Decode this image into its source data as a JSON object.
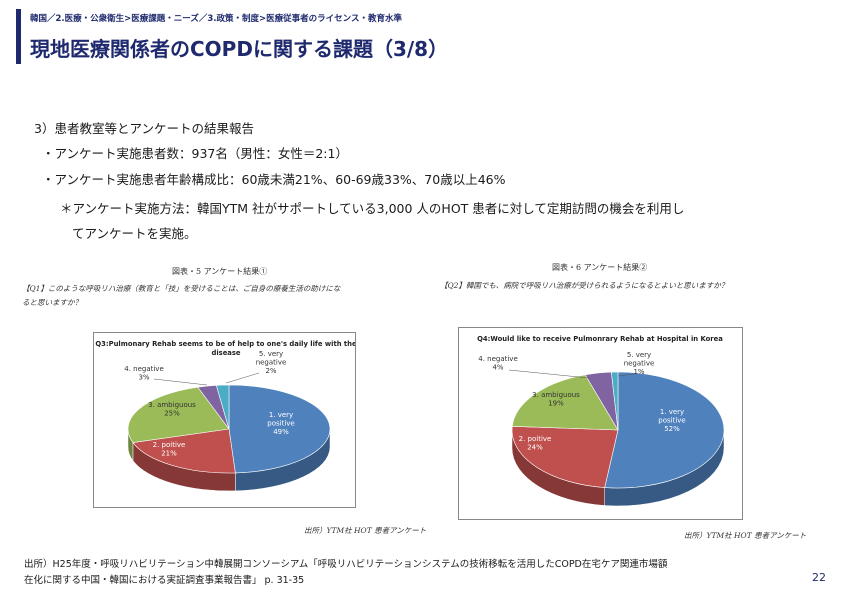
{
  "header": {
    "breadcrumb": "韓国／2.医療・公衆衛生>医療課題・ニーズ／3.政策・制度>医療従事者のライセンス・教育水準",
    "title": "現地医療関係者のCOPDに関する課題（3/8）"
  },
  "body": {
    "heading": "3）患者教室等とアンケートの結果報告",
    "bullet1": "・アンケート実施患者数：937名（男性：女性＝2:1）",
    "bullet2": "・アンケート実施患者年齢構成比：60歳未満21%、60-69歳33%、70歳以上46%",
    "note_line1": "＊アンケート実施方法：韓国YTM 社がサポートしている3,000 人のHOT 患者に対して定期訪問の機会を利用し",
    "note_line2": "てアンケートを実施。"
  },
  "figures": {
    "fig1_title": "図表・5 アンケート結果①",
    "fig1_question_line1": "【Q1】このような呼吸リハ治療（教育と「技」を受けることは、ご自身の療養生活の助けにな",
    "fig1_question_line2": "ると思いますか？",
    "fig1_source": "出所）YTM社 HOT 患者アンケート",
    "fig2_title": "図表・6 アンケート結果②",
    "fig2_question": "【Q2】韓国でも、病院で呼吸リハ治療が受けられるようになるとよいと思いますか？",
    "fig2_source": "出所）YTM社 HOT 患者アンケート"
  },
  "chart_data": [
    {
      "type": "pie",
      "title_line1": "Q3:Pulmonary Rehab seems to be of help to one's daily life with the",
      "title_line2": "disease",
      "slices": [
        {
          "label_line1": "1. very",
          "label_line2": "positive",
          "pct_label": "49%",
          "value": 49,
          "color": "#4f81bd"
        },
        {
          "label_line1": "2. poitive",
          "label_line2": "",
          "pct_label": "21%",
          "value": 21,
          "color": "#c0504d"
        },
        {
          "label_line1": "3. ambiguous",
          "label_line2": "",
          "pct_label": "25%",
          "value": 25,
          "color": "#9bbb59"
        },
        {
          "label_line1": "4. negative",
          "label_line2": "",
          "pct_label": "3%",
          "value": 3,
          "color": "#8064a2"
        },
        {
          "label_line1": "5. very",
          "label_line2": "negative",
          "pct_label": "2%",
          "value": 2,
          "color": "#4bacc6"
        }
      ]
    },
    {
      "type": "pie",
      "title_line1": "Q4:Would like to receive Pulmonrary Rehab at Hospital in Korea",
      "title_line2": "",
      "slices": [
        {
          "label_line1": "1. very",
          "label_line2": "positive",
          "pct_label": "52%",
          "value": 52,
          "color": "#4f81bd"
        },
        {
          "label_line1": "2. poitive",
          "label_line2": "",
          "pct_label": "24%",
          "value": 24,
          "color": "#c0504d"
        },
        {
          "label_line1": "3. ambiguous",
          "label_line2": "",
          "pct_label": "19%",
          "value": 19,
          "color": "#9bbb59"
        },
        {
          "label_line1": "4. negative",
          "label_line2": "",
          "pct_label": "4%",
          "value": 4,
          "color": "#8064a2"
        },
        {
          "label_line1": "5. very",
          "label_line2": "negative",
          "pct_label": "1%",
          "value": 1,
          "color": "#4bacc6"
        }
      ]
    }
  ],
  "footer": {
    "source_line1": "出所）H25年度・呼吸リハビリテーション中韓展開コンソーシアム「呼吸リハビリテーションシステムの技術移転を活用したCOPD在宅ケア関連市場額",
    "source_line2": "在化に関する中国・韓国における実証調査事業報告書」 p. 31-35",
    "page_number": "22"
  }
}
